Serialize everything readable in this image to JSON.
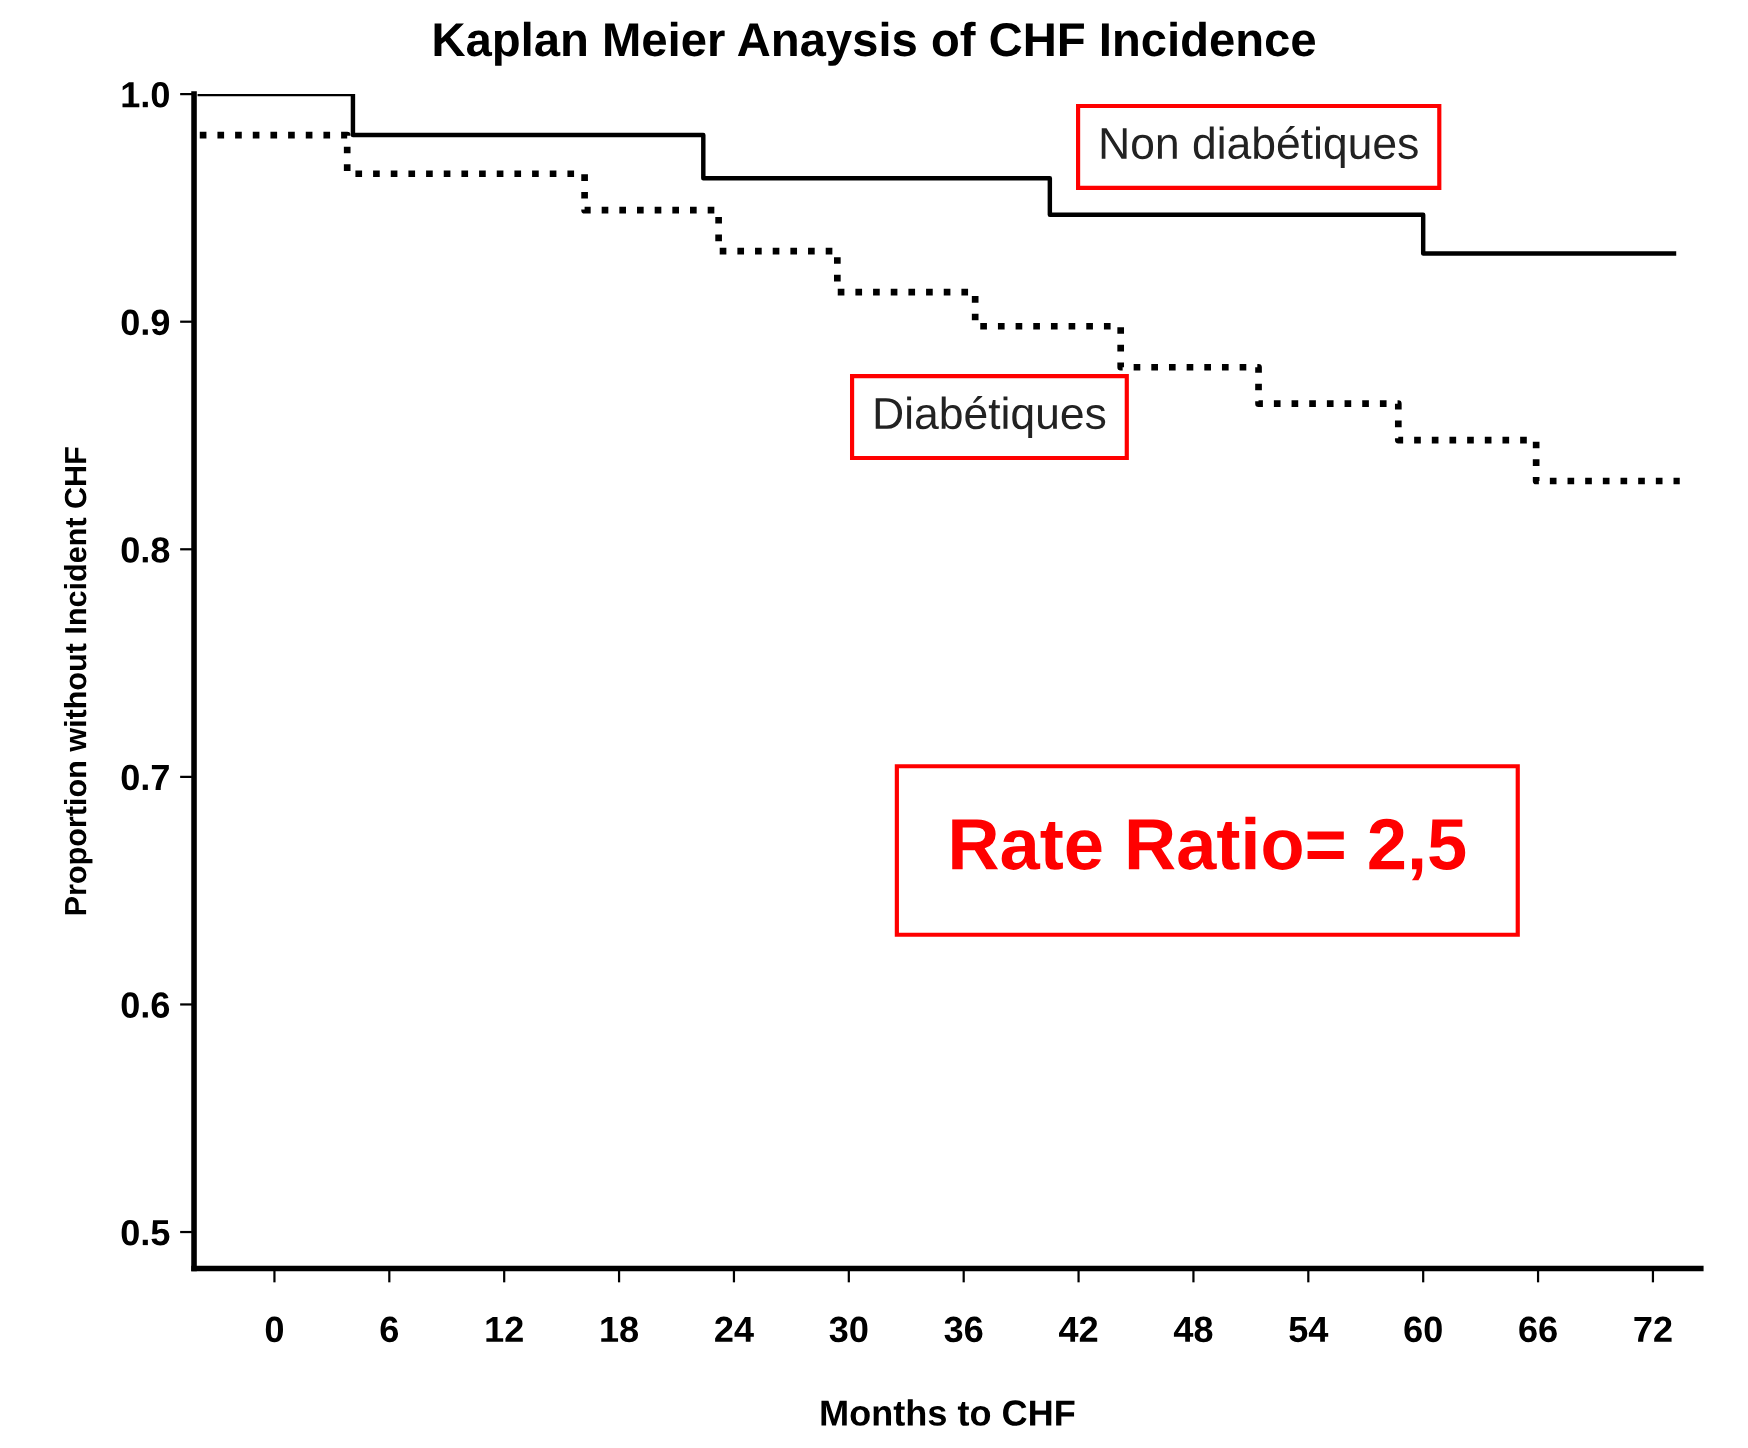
{
  "chart_data": {
    "type": "step",
    "title": "Kaplan Meier Anaysis of CHF Incidence",
    "xlabel": "Months to CHF",
    "ylabel": "Proportion without Incident CHF",
    "series": [
      {
        "name": "Non diabétiques",
        "color": "#000000",
        "line_style": "solid",
        "x": [
          -3.9,
          4.1,
          22.4,
          40.5,
          60.0,
          73.1
        ],
        "values": [
          1.0,
          0.982,
          0.963,
          0.947,
          0.93,
          0.93
        ]
      },
      {
        "name": "Diabétiques",
        "color": "#000000",
        "line_style": "dotted",
        "x": [
          -3.9,
          3.8,
          16.2,
          23.2,
          29.4,
          36.6,
          44.2,
          51.4,
          58.7,
          65.9,
          73.4
        ],
        "values": [
          0.982,
          0.965,
          0.949,
          0.931,
          0.913,
          0.898,
          0.88,
          0.864,
          0.848,
          0.83,
          0.83
        ]
      }
    ],
    "xlim": [
      -4.2,
      74.5
    ],
    "xticks": [
      0,
      6,
      12,
      18,
      24,
      30,
      36,
      42,
      48,
      54,
      60,
      66,
      72
    ],
    "ylim": [
      0.484,
      1.0
    ],
    "yticks": [
      {
        "value": 0.5,
        "label": "0.5"
      },
      {
        "value": 0.6,
        "label": "0.6"
      },
      {
        "value": 0.7,
        "label": "0.7"
      },
      {
        "value": 0.8,
        "label": "0.8"
      },
      {
        "value": 0.9,
        "label": "0.9"
      },
      {
        "value": 1.0,
        "label": "1.0"
      }
    ],
    "grid": false,
    "legend": false,
    "annotations": [
      "Rate Ratio= 2,5"
    ]
  }
}
